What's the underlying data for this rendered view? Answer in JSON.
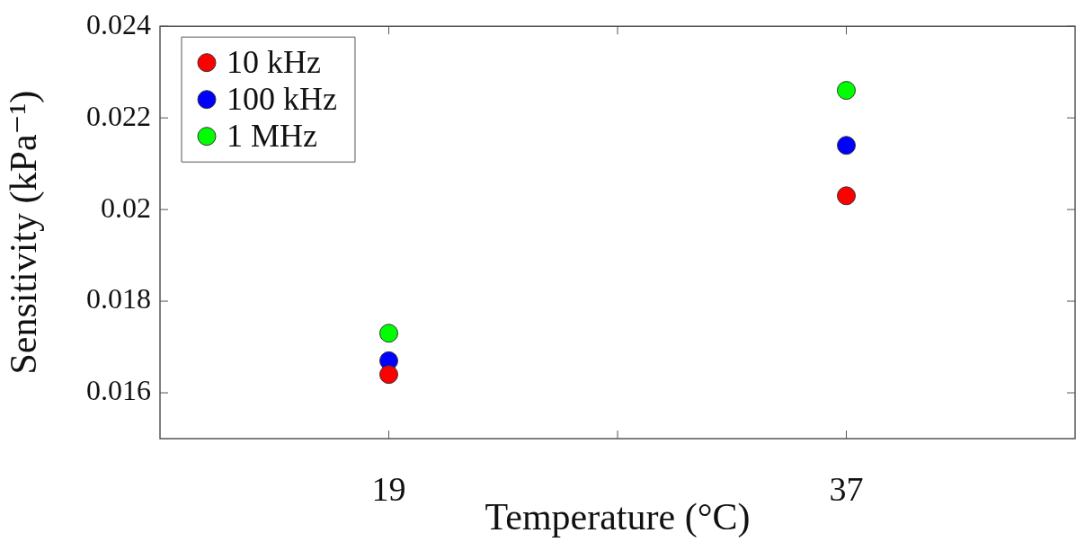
{
  "chart_data": {
    "type": "scatter",
    "xlabel": "Temperature (°C)",
    "ylabel": "Sensitivity (kPa⁻¹)",
    "x": [
      19,
      37
    ],
    "series": [
      {
        "name": "10 kHz",
        "color": "#ff0000",
        "values": [
          0.0164,
          0.0203
        ]
      },
      {
        "name": "100 kHz",
        "color": "#0000ff",
        "values": [
          0.0167,
          0.0214
        ]
      },
      {
        "name": "1 MHz",
        "color": "#00ff00",
        "values": [
          0.0173,
          0.0226
        ]
      }
    ],
    "xlim": [
      10,
      46
    ],
    "xticks": [
      19,
      {
        "value": 28,
        "label": null
      },
      37
    ],
    "ylim": [
      0.015,
      0.024
    ],
    "yticks": [
      0.016,
      0.018,
      0.02,
      0.022,
      0.024
    ],
    "grid": false,
    "legend": "top left",
    "marker": "circle"
  }
}
